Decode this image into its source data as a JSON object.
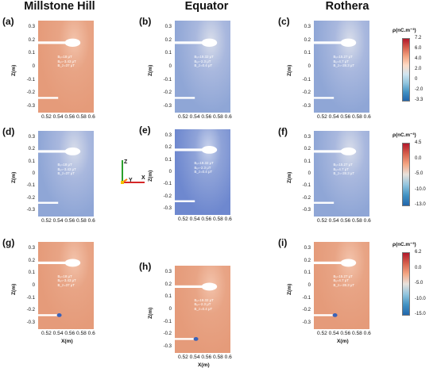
{
  "columns": [
    {
      "id": "millstone",
      "label": "Millstone Hill"
    },
    {
      "id": "equator",
      "label": "Equator"
    },
    {
      "id": "rothera",
      "label": "Rothera"
    }
  ],
  "panels": [
    {
      "label": "(a)",
      "col": 0,
      "row": 0,
      "b_lines": [
        "Bₓ=18 μT",
        "Bᵧ=-3.43 μT",
        "B_z=37 μT"
      ],
      "palette": "orange"
    },
    {
      "label": "(b)",
      "col": 1,
      "row": 0,
      "b_lines": [
        "Bₓ=19.32 μT",
        "Bᵧ=-2.3 μT",
        "B_z=0.4 μT"
      ],
      "palette": "blue"
    },
    {
      "label": "(c)",
      "col": 2,
      "row": 0,
      "b_lines": [
        "Bₓ=15.27 μT",
        "Bᵧ=4.7 μT",
        "B_z=-28.3 μT"
      ],
      "palette": "blue"
    },
    {
      "label": "(d)",
      "col": 0,
      "row": 1,
      "b_lines": [
        "Bₓ=18 μT",
        "Bᵧ=-3.43 μT",
        "B_z=37 μT"
      ],
      "palette": "blue"
    },
    {
      "label": "(e)",
      "col": 1,
      "row": 1,
      "b_lines": [
        "Bₓ=19.32 μT",
        "Bᵧ=-2.3 μT",
        "B_z=0.4 μT"
      ],
      "palette": "deepblue"
    },
    {
      "label": "(f)",
      "col": 2,
      "row": 1,
      "b_lines": [
        "Bₓ=15.27 μT",
        "Bᵧ=4.7 μT",
        "B_z=-28.3 μT"
      ],
      "palette": "blue"
    },
    {
      "label": "(g)",
      "col": 0,
      "row": 2,
      "b_lines": [
        "Bₓ=18 μT",
        "Bᵧ=-3.43 μT",
        "B_z=37 μT"
      ],
      "palette": "orange"
    },
    {
      "label": "(h)",
      "col": 1,
      "row": 2,
      "b_lines": [
        "Bₓ=19.32 μT",
        "Bᵧ=-2.3 μT",
        "B_z=0.4 μT"
      ],
      "palette": "orange"
    },
    {
      "label": "(i)",
      "col": 2,
      "row": 2,
      "b_lines": [
        "Bₓ=15.27 μT",
        "Bᵧ=4.7 μT",
        "B_z=-28.3 μT"
      ],
      "palette": "orange"
    }
  ],
  "y_ticks": [
    "0.3",
    "0.2",
    "0.1",
    "0",
    "-0.1",
    "-0.2",
    "-0.3"
  ],
  "x_ticks": "0.52 0.54 0.56 0.58 0.6",
  "y_axis_label": "Z(m)",
  "x_axis_label": "X(m)",
  "colorbars": [
    {
      "title": "ρ(nC.m⁻³)",
      "ticks": [
        "7.2",
        "6.0",
        "4.0",
        "2.0",
        "0",
        "-2.0",
        "-3.3"
      ],
      "gradient": [
        "#b2182b",
        "#d6604d",
        "#f4a582",
        "#fddbc7",
        "#d1e5f0",
        "#92c5de",
        "#4393c3",
        "#2166ac"
      ]
    },
    {
      "title": "ρ(nC.m⁻³)",
      "ticks": [
        "4.5",
        "0.0",
        "-5.0",
        "-10.0",
        "-13.0"
      ],
      "gradient": [
        "#b2182b",
        "#d6604d",
        "#f4a582",
        "#e8e1dc",
        "#92c5de",
        "#4393c3",
        "#2166ac"
      ]
    },
    {
      "title": "ρ(nC.m⁻³)",
      "ticks": [
        "6.2",
        "0.0",
        "-5.0",
        "-10.0",
        "-15.0"
      ],
      "gradient": [
        "#b2182b",
        "#d6604d",
        "#f4a582",
        "#e8e1dc",
        "#92c5de",
        "#4393c3",
        "#2166ac"
      ]
    }
  ],
  "axes_glyph": {
    "z": "Z",
    "y": "Y",
    "x": "X"
  },
  "palette_colors": {
    "orange": "#e59b7a",
    "blue": "#8fa6d6",
    "deepblue": "#6e88cf"
  }
}
